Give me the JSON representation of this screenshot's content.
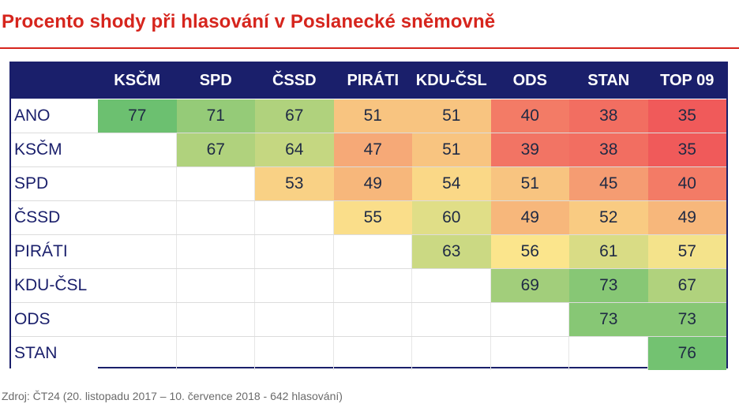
{
  "title": "Procento shody při hlasování v Poslanecké sněmovně",
  "source": "Zdroj: ČT24  (20. listopadu 2017 – 10. července 2018 - 642 hlasování)",
  "colors": {
    "title": "#d6251d",
    "header_bg": "#1a1f6b",
    "low": "#f05a5a",
    "mid": "#fbe58c",
    "high": "#6cc070"
  },
  "chart_data": {
    "type": "heatmap",
    "title": "Procento shody při hlasování v Poslanecké sněmovně",
    "columns": [
      "KSČM",
      "SPD",
      "ČSSD",
      "PIRÁTI",
      "KDU-ČSL",
      "ODS",
      "STAN",
      "TOP 09"
    ],
    "rows": [
      "ANO",
      "KSČM",
      "SPD",
      "ČSSD",
      "PIRÁTI",
      "KDU-ČSL",
      "ODS",
      "STAN"
    ],
    "values": [
      [
        77,
        71,
        67,
        51,
        51,
        40,
        38,
        35
      ],
      [
        null,
        67,
        64,
        47,
        51,
        39,
        38,
        35
      ],
      [
        null,
        null,
        53,
        49,
        54,
        51,
        45,
        40
      ],
      [
        null,
        null,
        null,
        55,
        60,
        49,
        52,
        49
      ],
      [
        null,
        null,
        null,
        null,
        63,
        56,
        61,
        57
      ],
      [
        null,
        null,
        null,
        null,
        null,
        69,
        73,
        67
      ],
      [
        null,
        null,
        null,
        null,
        null,
        null,
        73,
        73
      ],
      [
        null,
        null,
        null,
        null,
        null,
        null,
        null,
        76
      ]
    ],
    "color_scale": {
      "min": 35,
      "max": 77
    }
  }
}
